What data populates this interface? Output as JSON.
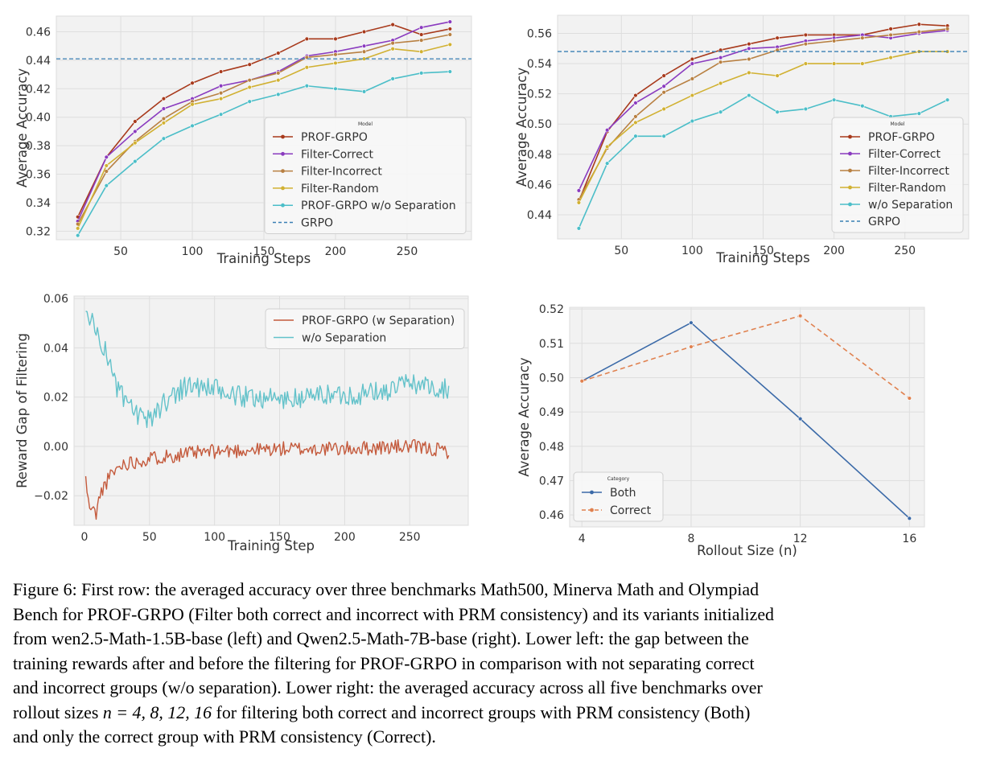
{
  "chart_data": [
    {
      "type": "line",
      "title": "",
      "xlabel": "Training Steps",
      "ylabel": "Average Accuracy",
      "xlim": [
        5,
        295
      ],
      "ylim": [
        0.314,
        0.471
      ],
      "xticks": [
        50,
        100,
        150,
        200,
        250
      ],
      "yticks": [
        0.32,
        0.34,
        0.36,
        0.38,
        0.4,
        0.42,
        0.44,
        0.46
      ],
      "grid": true,
      "legend_position": "lower-right",
      "legend_title": "Model",
      "x": [
        20,
        40,
        60,
        80,
        100,
        120,
        140,
        160,
        180,
        200,
        220,
        240,
        260,
        280
      ],
      "series": [
        {
          "name": "PROF-GRPO",
          "color": "#a83a1c",
          "marker": "dot",
          "values": [
            0.33,
            0.372,
            0.397,
            0.413,
            0.424,
            0.432,
            0.437,
            0.445,
            0.455,
            0.455,
            0.46,
            0.465,
            0.458,
            0.462
          ]
        },
        {
          "name": "Filter-Correct",
          "color": "#8a3bbf",
          "marker": "dot",
          "values": [
            0.327,
            0.372,
            0.39,
            0.406,
            0.413,
            0.422,
            0.426,
            0.432,
            0.443,
            0.446,
            0.45,
            0.454,
            0.463,
            0.467
          ]
        },
        {
          "name": "Filter-Incorrect",
          "color": "#b88042",
          "marker": "dot",
          "values": [
            0.325,
            0.362,
            0.383,
            0.399,
            0.411,
            0.417,
            0.426,
            0.431,
            0.442,
            0.444,
            0.446,
            0.452,
            0.454,
            0.458
          ]
        },
        {
          "name": "Filter-Random",
          "color": "#d1b132",
          "marker": "dot",
          "values": [
            0.322,
            0.366,
            0.382,
            0.396,
            0.409,
            0.413,
            0.421,
            0.426,
            0.435,
            0.438,
            0.441,
            0.448,
            0.446,
            0.451
          ]
        },
        {
          "name": "PROF-GRPO w/o Separation",
          "color": "#4bbec8",
          "marker": "dot",
          "values": [
            0.317,
            0.352,
            0.369,
            0.385,
            0.394,
            0.402,
            0.411,
            0.416,
            0.422,
            0.42,
            0.418,
            0.427,
            0.431,
            0.432
          ]
        },
        {
          "name": "GRPO",
          "color": "#3a80b4",
          "dash": true,
          "constant": 0.441
        }
      ]
    },
    {
      "type": "line",
      "title": "",
      "xlabel": "Training Steps",
      "ylabel": "Average Accuracy",
      "xlim": [
        5,
        295
      ],
      "ylim": [
        0.424,
        0.572
      ],
      "xticks": [
        50,
        100,
        150,
        200,
        250
      ],
      "yticks": [
        0.44,
        0.46,
        0.48,
        0.5,
        0.52,
        0.54,
        0.56
      ],
      "grid": true,
      "legend_position": "lower-right",
      "legend_title": "Model",
      "x": [
        20,
        40,
        60,
        80,
        100,
        120,
        140,
        160,
        180,
        200,
        220,
        240,
        260,
        280
      ],
      "series": [
        {
          "name": "PROF-GRPO",
          "color": "#a83a1c",
          "marker": "dot",
          "values": [
            0.449,
            0.495,
            0.519,
            0.532,
            0.543,
            0.549,
            0.553,
            0.557,
            0.559,
            0.559,
            0.559,
            0.563,
            0.566,
            0.565
          ]
        },
        {
          "name": "Filter-Correct",
          "color": "#8a3bbf",
          "marker": "dot",
          "values": [
            0.456,
            0.496,
            0.514,
            0.525,
            0.54,
            0.544,
            0.55,
            0.551,
            0.555,
            0.557,
            0.559,
            0.557,
            0.56,
            0.562
          ]
        },
        {
          "name": "Filter-Incorrect",
          "color": "#b88042",
          "marker": "dot",
          "values": [
            0.45,
            0.484,
            0.505,
            0.521,
            0.53,
            0.541,
            0.543,
            0.549,
            0.553,
            0.555,
            0.557,
            0.559,
            0.561,
            0.563
          ]
        },
        {
          "name": "Filter-Random",
          "color": "#d1b132",
          "marker": "dot",
          "values": [
            0.448,
            0.485,
            0.501,
            0.51,
            0.519,
            0.527,
            0.534,
            0.532,
            0.54,
            0.54,
            0.54,
            0.544,
            0.548,
            0.548
          ]
        },
        {
          "name": "w/o Separation",
          "color": "#4bbec8",
          "marker": "dot",
          "values": [
            0.431,
            0.474,
            0.492,
            0.492,
            0.502,
            0.508,
            0.519,
            0.508,
            0.51,
            0.516,
            0.512,
            0.505,
            0.507,
            0.516
          ]
        },
        {
          "name": "GRPO",
          "color": "#3a80b4",
          "dash": true,
          "constant": 0.548
        }
      ]
    },
    {
      "type": "line",
      "title": "",
      "xlabel": "Training Step",
      "ylabel": "Reward Gap of Filtering",
      "xlim": [
        -8,
        295
      ],
      "ylim": [
        -0.032,
        0.061
      ],
      "xticks": [
        0,
        50,
        100,
        150,
        200,
        250
      ],
      "yticks": [
        -0.02,
        0.0,
        0.02,
        0.04,
        0.06
      ],
      "ytick_labels": [
        "−0.02",
        "0.00",
        "0.02",
        "0.04",
        "0.06"
      ],
      "grid": true,
      "legend_position": "top-right",
      "series": [
        {
          "name": "PROF-GRPO (w Separation)",
          "color": "#c45a3c",
          "anchors": [
            [
              1,
              -0.013
            ],
            [
              3,
              -0.023
            ],
            [
              6,
              -0.026
            ],
            [
              9,
              -0.027
            ],
            [
              12,
              -0.02
            ],
            [
              15,
              -0.016
            ],
            [
              20,
              -0.012
            ],
            [
              25,
              -0.009
            ],
            [
              30,
              -0.007
            ],
            [
              40,
              -0.006
            ],
            [
              60,
              -0.004
            ],
            [
              80,
              -0.003
            ],
            [
              100,
              -0.002
            ],
            [
              150,
              -0.001
            ],
            [
              200,
              -0.001
            ],
            [
              250,
              0.0
            ],
            [
              280,
              -0.002
            ]
          ],
          "noise": 0.003,
          "seed": 11
        },
        {
          "name": "w/o Separation",
          "color": "#63c2ca",
          "anchors": [
            [
              1,
              0.052
            ],
            [
              3,
              0.055
            ],
            [
              6,
              0.05
            ],
            [
              10,
              0.046
            ],
            [
              15,
              0.04
            ],
            [
              20,
              0.033
            ],
            [
              25,
              0.024
            ],
            [
              30,
              0.019
            ],
            [
              35,
              0.016
            ],
            [
              40,
              0.013
            ],
            [
              45,
              0.01
            ],
            [
              50,
              0.011
            ],
            [
              55,
              0.014
            ],
            [
              60,
              0.017
            ],
            [
              70,
              0.022
            ],
            [
              80,
              0.025
            ],
            [
              90,
              0.024
            ],
            [
              100,
              0.023
            ],
            [
              110,
              0.021
            ],
            [
              120,
              0.02
            ],
            [
              130,
              0.02
            ],
            [
              140,
              0.02
            ],
            [
              150,
              0.019
            ],
            [
              160,
              0.019
            ],
            [
              170,
              0.02
            ],
            [
              180,
              0.021
            ],
            [
              190,
              0.021
            ],
            [
              200,
              0.021
            ],
            [
              210,
              0.021
            ],
            [
              220,
              0.022
            ],
            [
              230,
              0.022
            ],
            [
              240,
              0.024
            ],
            [
              250,
              0.026
            ],
            [
              260,
              0.025
            ],
            [
              270,
              0.024
            ],
            [
              280,
              0.024
            ]
          ],
          "noise": 0.0045,
          "seed": 23
        }
      ]
    },
    {
      "type": "line",
      "title": "",
      "xlabel": "Rollout Size (n)",
      "ylabel": "Average Accuracy",
      "xlim": [
        3.55,
        16.55
      ],
      "ylim": [
        0.4565,
        0.5205
      ],
      "xticks": [
        4,
        8,
        12,
        16
      ],
      "yticks": [
        0.46,
        0.47,
        0.48,
        0.49,
        0.5,
        0.51,
        0.52
      ],
      "grid": true,
      "legend_position": "lower-left",
      "legend_title": "Category",
      "x": [
        4,
        8,
        12,
        16
      ],
      "series": [
        {
          "name": "Both",
          "color": "#3b6aa8",
          "marker": "dot",
          "values": [
            0.499,
            0.516,
            0.488,
            0.459
          ]
        },
        {
          "name": "Correct",
          "color": "#e0814f",
          "marker": "dot",
          "dash": true,
          "values": [
            0.499,
            0.509,
            0.518,
            0.494
          ]
        }
      ]
    }
  ],
  "caption": {
    "lines": [
      "Figure 6: First row: the averaged accuracy over three benchmarks Math500, Minerva Math and Olympiad",
      "Bench for PROF-GRPO (Filter both correct and incorrect with PRM consistency) and its variants initialized",
      "from wen2.5-Math-1.5B-base (left) and Qwen2.5-Math-7B-base (right).  Lower left: the gap between the",
      "training rewards after and before the filtering for PROF-GRPO in comparison with not separating correct",
      "and incorrect groups (w/o separation). Lower right: the averaged accuracy across all five benchmarks over",
      "for filtering both correct and incorrect groups with PRM consistency (Both)",
      "and only the correct group with PRM consistency (Correct)."
    ],
    "rollout_prefix": "rollout sizes",
    "math_expr": "n = 4, 8, 12, 16"
  }
}
